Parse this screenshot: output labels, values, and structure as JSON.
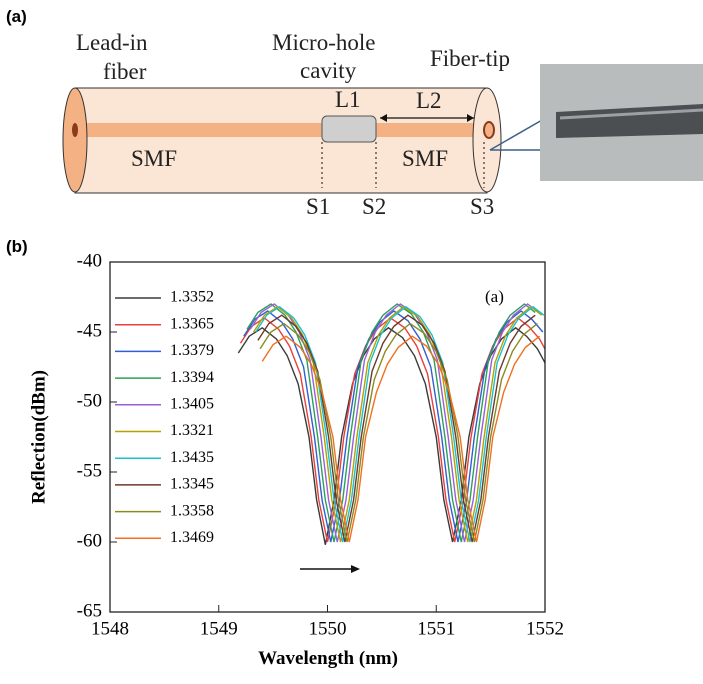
{
  "diagram": {
    "label": "(a)",
    "lead_in": [
      "Lead-in",
      "fiber"
    ],
    "micro_hole": [
      "Micro-hole",
      "cavity"
    ],
    "fiber_tip": "Fiber-tip",
    "L1": "L1",
    "L2": "L2",
    "smf_left": "SMF",
    "smf_right": "SMF",
    "S1": "S1",
    "S2": "S2",
    "S3": "S3"
  },
  "chart_data": {
    "type": "line",
    "panel_label": "(b)",
    "annotation": "(a)",
    "x_label": "Wavelength (nm)",
    "y_label": "Reflection(dBm)",
    "xlim": [
      1548,
      1552
    ],
    "xticks": [
      1548,
      1549,
      1550,
      1551,
      1552
    ],
    "ylim": [
      -65,
      -40
    ],
    "yticks": [
      -65,
      -60,
      -55,
      -50,
      -45,
      -40
    ],
    "legend": "upper left",
    "series": [
      {
        "name": "1.3352",
        "color": "#3a3a3a",
        "x": [
          1549.18,
          1549.28,
          1549.4,
          1549.53,
          1549.63,
          1549.73,
          1549.83,
          1549.9,
          1549.98,
          1550.06,
          1550.13,
          1550.23,
          1550.33,
          1550.43,
          1550.56,
          1550.69,
          1550.8,
          1550.9,
          1551.0,
          1551.07,
          1551.15,
          1551.23,
          1551.3,
          1551.4,
          1551.5,
          1551.6,
          1551.73,
          1551.83,
          1551.93,
          1552.0
        ],
        "values": [
          -46.5,
          -45.3,
          -44.7,
          -45.5,
          -46.7,
          -48.7,
          -52.5,
          -57,
          -60.2,
          -57,
          -52.5,
          -48.7,
          -46.7,
          -45.5,
          -44.7,
          -45.4,
          -46.7,
          -48.7,
          -52.5,
          -57,
          -60,
          -57,
          -52.5,
          -48.7,
          -46.7,
          -45.5,
          -44.7,
          -45.3,
          -46.2,
          -47.2
        ]
      },
      {
        "name": "1.3365",
        "color": "#e8413c",
        "x": [
          1549.2,
          1549.3,
          1549.42,
          1549.55,
          1549.65,
          1549.75,
          1549.85,
          1549.92,
          1550.0,
          1550.08,
          1550.15,
          1550.25,
          1550.35,
          1550.45,
          1550.58,
          1550.71,
          1550.82,
          1550.92,
          1551.02,
          1551.09,
          1551.17,
          1551.25,
          1551.32,
          1551.42,
          1551.52,
          1551.62,
          1551.75,
          1551.85,
          1551.95,
          1552.02
        ],
        "values": [
          -45.8,
          -44.6,
          -44,
          -44.8,
          -46,
          -48,
          -52.5,
          -57,
          -60,
          -57,
          -52.5,
          -48,
          -46,
          -44.8,
          -44,
          -44.7,
          -46,
          -48,
          -52.5,
          -57,
          -60,
          -57,
          -52.5,
          -48,
          -46,
          -44.8,
          -44,
          -44.6,
          -45.5,
          -46.5
        ]
      },
      {
        "name": "1.3379",
        "color": "#2f5fd0",
        "x": [
          1549.23,
          1549.33,
          1549.45,
          1549.58,
          1549.68,
          1549.78,
          1549.88,
          1549.95,
          1550.03,
          1550.11,
          1550.18,
          1550.28,
          1550.38,
          1550.48,
          1550.61,
          1550.74,
          1550.85,
          1550.95,
          1551.05,
          1551.12,
          1551.2,
          1551.28,
          1551.35,
          1551.45,
          1551.55,
          1551.65,
          1551.78,
          1551.88,
          1551.98
        ],
        "values": [
          -45.3,
          -44.1,
          -43.5,
          -44.3,
          -45.5,
          -47.5,
          -52.5,
          -57,
          -60,
          -57,
          -52.5,
          -47.5,
          -45.5,
          -44.3,
          -43.5,
          -44.2,
          -45.5,
          -47.5,
          -52.5,
          -57,
          -60,
          -57,
          -52.5,
          -47.5,
          -45.5,
          -44.3,
          -43.5,
          -44.1,
          -45
        ]
      },
      {
        "name": "1.3394",
        "color": "#2ca05a",
        "x": [
          1549.26,
          1549.36,
          1549.48,
          1549.61,
          1549.71,
          1549.81,
          1549.91,
          1549.98,
          1550.06,
          1550.14,
          1550.21,
          1550.31,
          1550.41,
          1550.51,
          1550.64,
          1550.77,
          1550.88,
          1550.98,
          1551.08,
          1551.15,
          1551.23,
          1551.31,
          1551.38,
          1551.48,
          1551.58,
          1551.68,
          1551.81,
          1551.91
        ],
        "values": [
          -44.8,
          -43.6,
          -43,
          -43.8,
          -45,
          -47,
          -52.5,
          -57,
          -60,
          -57,
          -52.5,
          -47,
          -45,
          -43.8,
          -43,
          -43.7,
          -45,
          -47,
          -52.5,
          -57,
          -60,
          -57,
          -52.5,
          -47,
          -45,
          -43.8,
          -43,
          -43.6
        ]
      },
      {
        "name": "1.3405",
        "color": "#9a5fd8",
        "x": [
          1549.29,
          1549.39,
          1549.51,
          1549.64,
          1549.74,
          1549.84,
          1549.94,
          1550.01,
          1550.09,
          1550.17,
          1550.24,
          1550.34,
          1550.44,
          1550.54,
          1550.67,
          1550.8,
          1550.91,
          1551.01,
          1551.11,
          1551.18,
          1551.26,
          1551.34,
          1551.41,
          1551.51,
          1551.61,
          1551.71,
          1551.84,
          1551.94
        ],
        "values": [
          -44.8,
          -43.6,
          -43,
          -43.8,
          -45,
          -47,
          -52.5,
          -57,
          -60,
          -57,
          -52.5,
          -47,
          -45,
          -43.8,
          -43,
          -43.7,
          -45,
          -47,
          -52.5,
          -57,
          -60,
          -57,
          -52.5,
          -47,
          -45,
          -43.8,
          -43,
          -43.6
        ]
      },
      {
        "name": "1.3321",
        "color": "#b8a000",
        "x": [
          1549.32,
          1549.42,
          1549.54,
          1549.67,
          1549.77,
          1549.87,
          1549.97,
          1550.04,
          1550.12,
          1550.2,
          1550.27,
          1550.37,
          1550.47,
          1550.57,
          1550.7,
          1550.83,
          1550.94,
          1551.04,
          1551.14,
          1551.21,
          1551.29,
          1551.37,
          1551.44,
          1551.54,
          1551.64,
          1551.74,
          1551.87,
          1551.97
        ],
        "values": [
          -45,
          -43.8,
          -43.2,
          -44,
          -45.2,
          -47.2,
          -52.5,
          -57,
          -60,
          -57,
          -52.5,
          -47.2,
          -45.2,
          -44,
          -43.2,
          -43.9,
          -45.2,
          -47.2,
          -52.5,
          -57,
          -60,
          -57,
          -52.5,
          -47.2,
          -45.2,
          -44,
          -43.2,
          -43.8
        ]
      },
      {
        "name": "1.3435",
        "color": "#19c0d0",
        "x": [
          1549.34,
          1549.44,
          1549.56,
          1549.69,
          1549.79,
          1549.89,
          1549.99,
          1550.06,
          1550.14,
          1550.22,
          1550.29,
          1550.39,
          1550.49,
          1550.59,
          1550.72,
          1550.85,
          1550.96,
          1551.06,
          1551.16,
          1551.23,
          1551.31,
          1551.39,
          1551.46,
          1551.56,
          1551.66,
          1551.76,
          1551.89,
          1551.99
        ],
        "values": [
          -45,
          -43.8,
          -43.2,
          -44,
          -45.2,
          -47.2,
          -52.5,
          -57,
          -60,
          -57,
          -52.5,
          -47.2,
          -45.2,
          -44,
          -43.2,
          -43.9,
          -45.2,
          -47.2,
          -52.5,
          -57,
          -60,
          -57,
          -52.5,
          -47.2,
          -45.2,
          -44,
          -43.2,
          -43.8
        ]
      },
      {
        "name": "1.3345",
        "color": "#6b3a2a",
        "x": [
          1549.36,
          1549.46,
          1549.58,
          1549.71,
          1549.81,
          1549.91,
          1550.01,
          1550.08,
          1550.16,
          1550.24,
          1550.31,
          1550.41,
          1550.51,
          1550.61,
          1550.74,
          1550.87,
          1550.98,
          1551.08,
          1551.18,
          1551.25,
          1551.33,
          1551.41,
          1551.48,
          1551.58,
          1551.68,
          1551.78,
          1551.91
        ],
        "values": [
          -45.6,
          -44.4,
          -43.8,
          -44.6,
          -45.8,
          -47.8,
          -52.5,
          -57,
          -60,
          -57,
          -52.5,
          -47.8,
          -45.8,
          -44.6,
          -43.8,
          -44.5,
          -45.8,
          -47.8,
          -52.5,
          -57,
          -60,
          -57,
          -52.5,
          -47.8,
          -45.8,
          -44.6,
          -43.8
        ]
      },
      {
        "name": "1.3358",
        "color": "#8a8a20",
        "x": [
          1549.38,
          1549.48,
          1549.6,
          1549.73,
          1549.83,
          1549.93,
          1550.03,
          1550.1,
          1550.18,
          1550.26,
          1550.33,
          1550.43,
          1550.53,
          1550.63,
          1550.76,
          1550.89,
          1551.0,
          1551.1,
          1551.2,
          1551.27,
          1551.35,
          1551.43,
          1551.5,
          1551.6,
          1551.7,
          1551.8,
          1551.93
        ],
        "values": [
          -46.2,
          -45,
          -44.4,
          -45.2,
          -46.4,
          -48.4,
          -52.5,
          -57,
          -60,
          -57,
          -52.5,
          -48.4,
          -46.4,
          -45.2,
          -44.4,
          -45.1,
          -46.4,
          -48.4,
          -52.5,
          -57,
          -60,
          -57,
          -52.5,
          -48.4,
          -46.4,
          -45.2,
          -44.4
        ]
      },
      {
        "name": "1.3469",
        "color": "#f07020",
        "x": [
          1549.4,
          1549.5,
          1549.62,
          1549.75,
          1549.85,
          1549.95,
          1550.05,
          1550.12,
          1550.2,
          1550.28,
          1550.35,
          1550.45,
          1550.55,
          1550.65,
          1550.78,
          1550.91,
          1551.02,
          1551.12,
          1551.22,
          1551.29,
          1551.37,
          1551.45,
          1551.52,
          1551.62,
          1551.72,
          1551.82,
          1551.95
        ],
        "values": [
          -47.1,
          -45.9,
          -45.3,
          -46.1,
          -47.3,
          -49.3,
          -52.5,
          -57,
          -60,
          -57,
          -52.5,
          -49.3,
          -47.3,
          -46.1,
          -45.3,
          -46,
          -47.3,
          -49.3,
          -52.5,
          -57,
          -60,
          -57,
          -52.5,
          -49.3,
          -47.3,
          -46.1,
          -45.3
        ]
      }
    ]
  }
}
